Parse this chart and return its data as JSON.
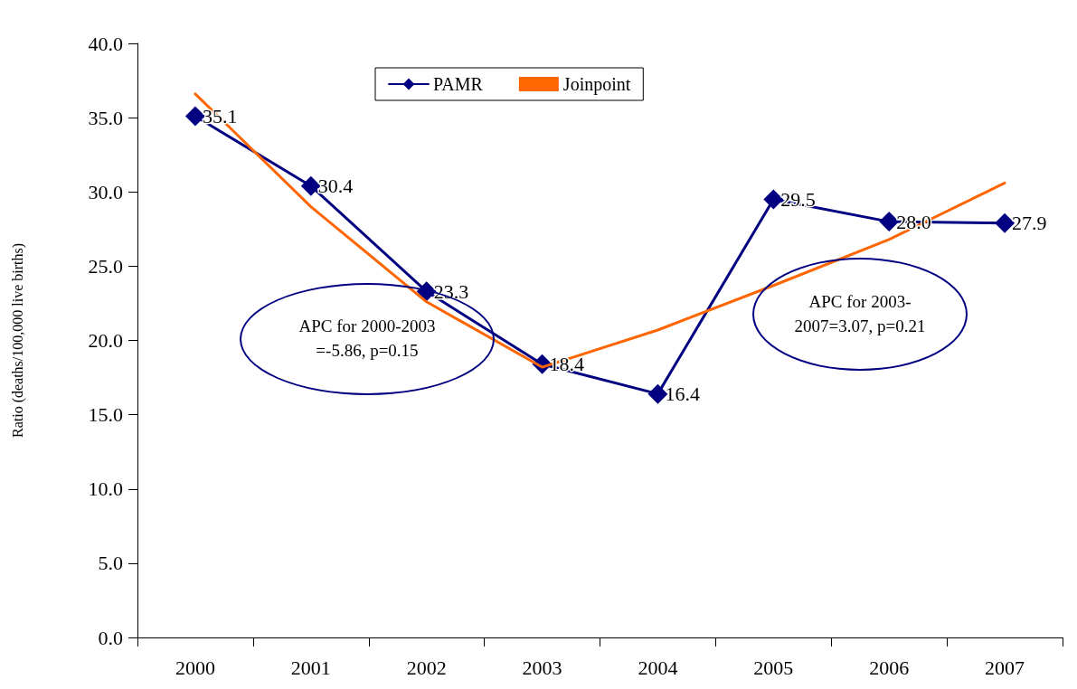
{
  "chart_data": {
    "type": "line",
    "ylabel": "Ratio (deaths/100,000 live births)",
    "categories": [
      "2000",
      "2001",
      "2002",
      "2003",
      "2004",
      "2005",
      "2006",
      "2007"
    ],
    "series": [
      {
        "name": "PAMR",
        "color": "#000080",
        "values": [
          35.1,
          30.4,
          23.3,
          18.4,
          16.4,
          29.5,
          28.0,
          27.9
        ],
        "value_labels": [
          "35.1",
          "30.4",
          "23.3",
          "18.4",
          "16.4",
          "29.5",
          "28.0",
          "27.9"
        ]
      },
      {
        "name": "Joinpoint",
        "color": "#ff6600",
        "marker": "none",
        "values": [
          36.6,
          29.0,
          22.6,
          18.2,
          20.7,
          23.7,
          26.8,
          30.6
        ]
      }
    ],
    "ylim": [
      0,
      40
    ],
    "yticks": [
      {
        "value": 0,
        "label": "0.0"
      },
      {
        "value": 5,
        "label": "5.0"
      },
      {
        "value": 10,
        "label": "10.0"
      },
      {
        "value": 15,
        "label": "15.0"
      },
      {
        "value": 20,
        "label": "20.0"
      },
      {
        "value": 25,
        "label": "25.0"
      },
      {
        "value": 30,
        "label": "30.0"
      },
      {
        "value": 35,
        "label": "35.0"
      },
      {
        "value": 40,
        "label": "40.0"
      }
    ],
    "annotations": [
      "APC for 2000-2003\n=-5.86, p=0.15",
      "APC for 2003-\n2007=3.07, p=0.21"
    ],
    "marker": "diamond",
    "line_style": "solid",
    "grid": false,
    "legend": "top"
  }
}
